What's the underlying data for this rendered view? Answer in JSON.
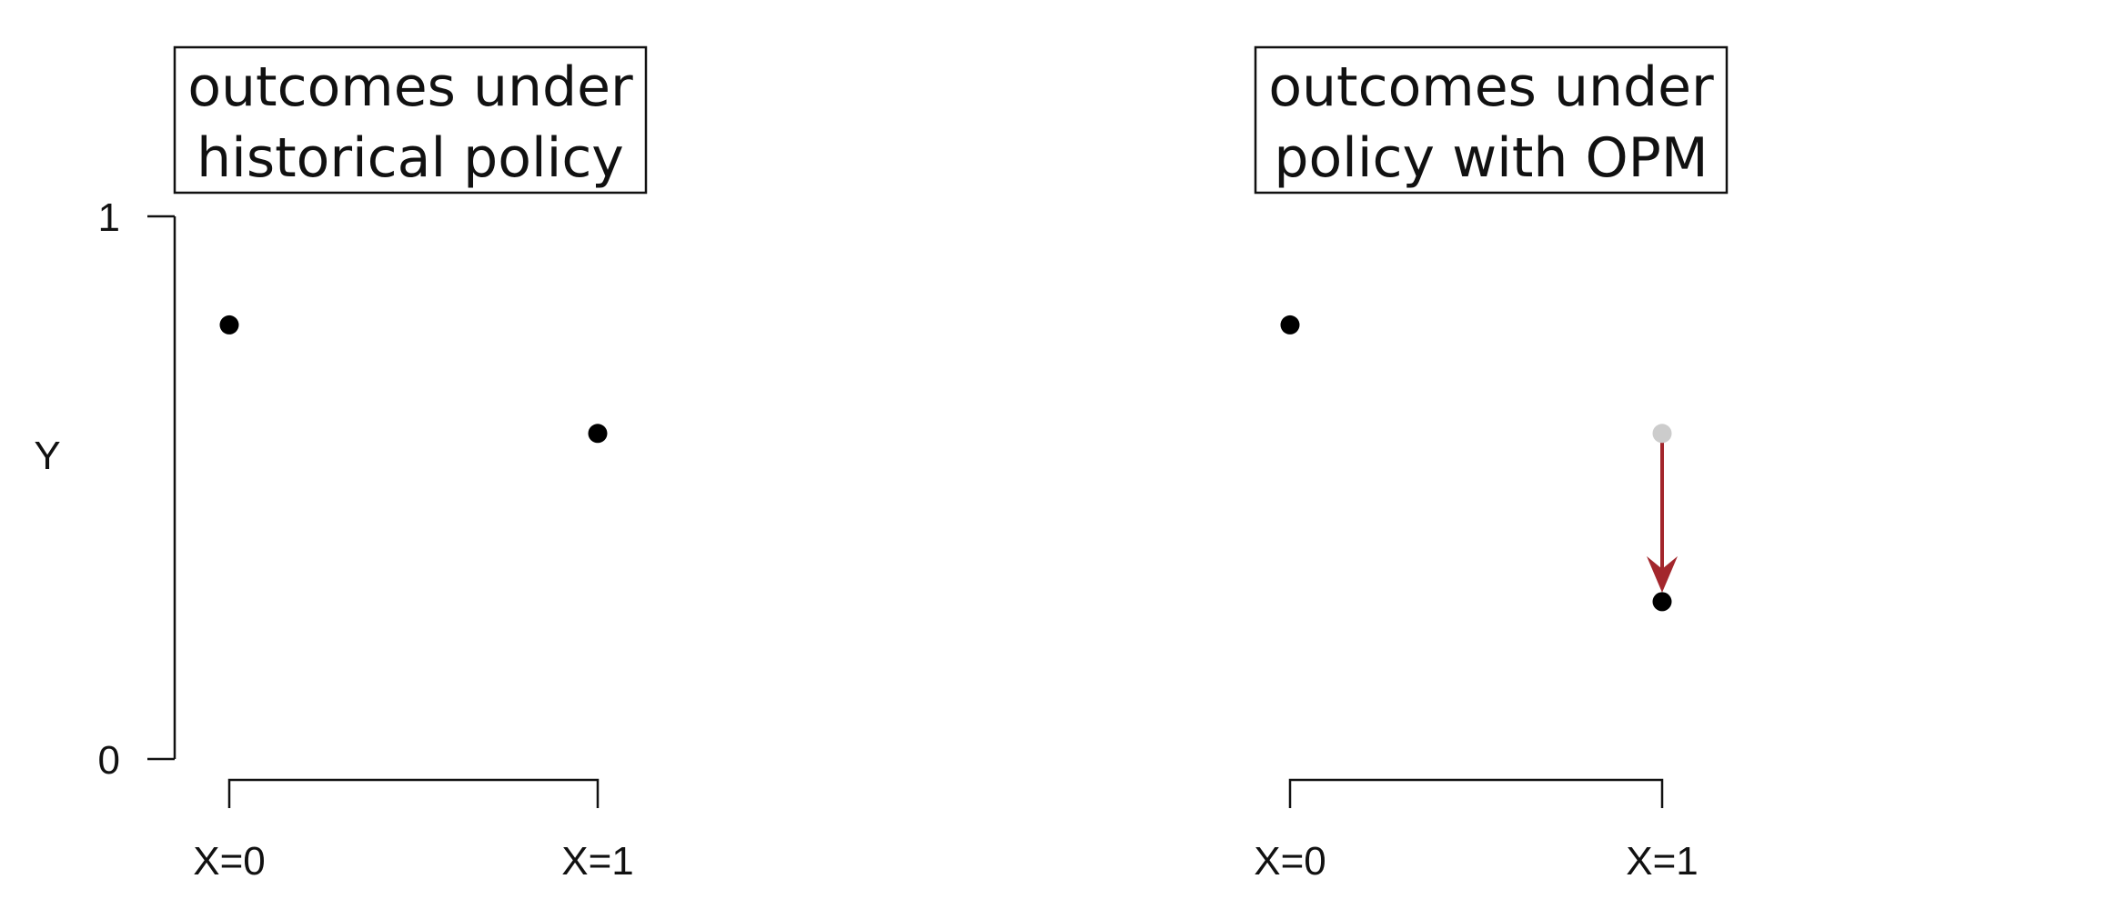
{
  "chart_data": [
    {
      "type": "scatter",
      "title_lines": [
        "outcomes under",
        "historical policy"
      ],
      "ylabel": "Y",
      "ylim": [
        0,
        1
      ],
      "yticks": [
        "0",
        "1"
      ],
      "categories": [
        "X=0",
        "X=1"
      ],
      "points": [
        {
          "x": "X=0",
          "y": 0.8,
          "color": "#000000"
        },
        {
          "x": "X=1",
          "y": 0.6,
          "color": "#000000"
        }
      ]
    },
    {
      "type": "scatter",
      "title_lines": [
        "outcomes under",
        "policy with OPM"
      ],
      "ylim": [
        0,
        1
      ],
      "categories": [
        "X=0",
        "X=1"
      ],
      "points": [
        {
          "x": "X=0",
          "y": 0.8,
          "color": "#000000"
        },
        {
          "x": "X=1",
          "y": 0.6,
          "color": "#cccccc"
        },
        {
          "x": "X=1",
          "y": 0.29,
          "color": "#000000"
        }
      ],
      "arrow": {
        "x": "X=1",
        "from_y": 0.6,
        "to_y": 0.29,
        "color": "#a3262c"
      }
    }
  ]
}
